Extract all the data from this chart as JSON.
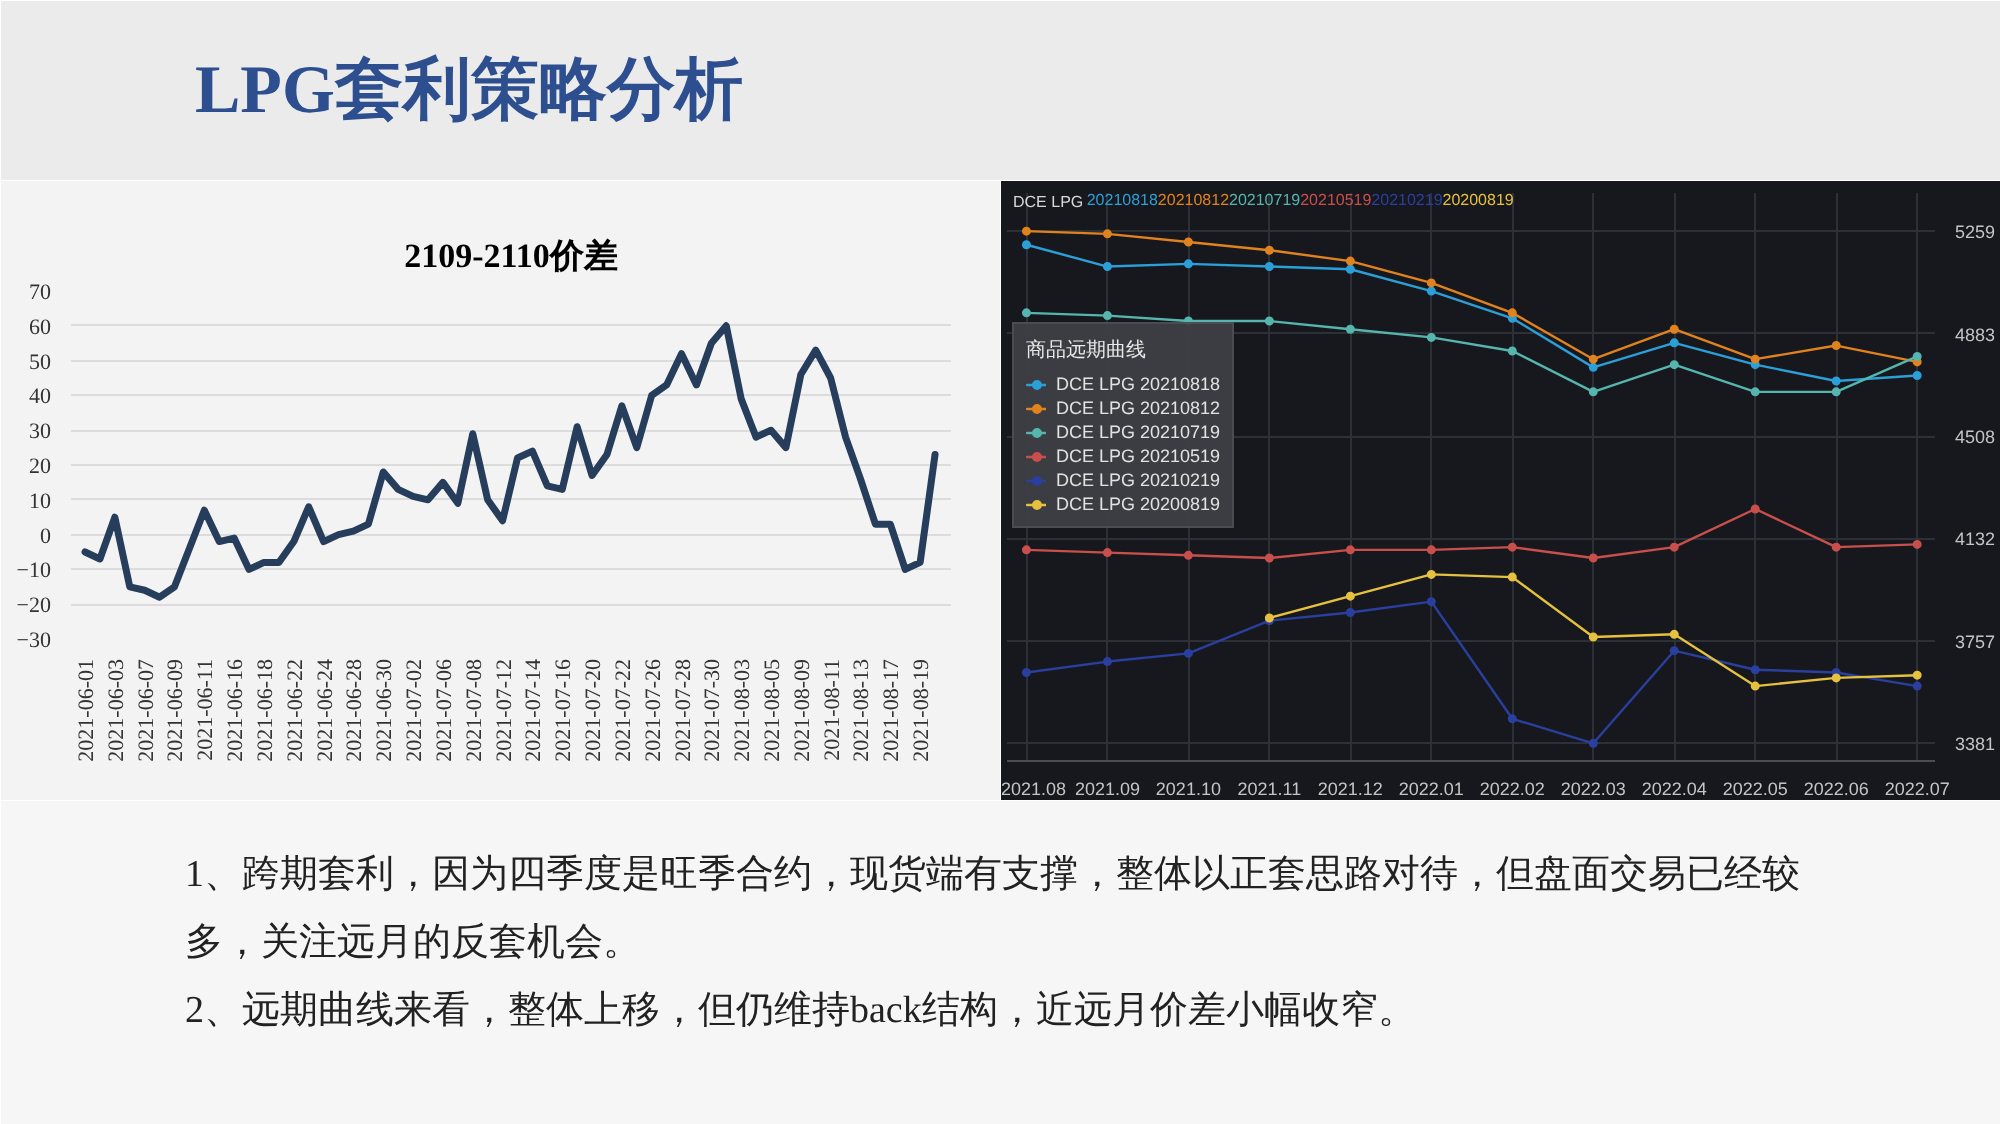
{
  "chart_data": [
    {
      "type": "other",
      "title": "LPG套利策略分析"
    },
    {
      "type": "line",
      "title": "2109-2110价差",
      "categories": [
        "2021-06-01",
        null,
        "2021-06-03",
        null,
        "2021-06-07",
        null,
        "2021-06-09",
        null,
        "2021-06-11",
        null,
        "2021-06-16",
        null,
        "2021-06-18",
        null,
        "2021-06-22",
        null,
        "2021-06-24",
        null,
        "2021-06-28",
        null,
        "2021-06-30",
        null,
        "2021-07-02",
        null,
        "2021-07-06",
        null,
        "2021-07-08",
        null,
        "2021-07-12",
        null,
        "2021-07-14",
        null,
        "2021-07-16",
        null,
        "2021-07-20",
        null,
        "2021-07-22",
        null,
        "2021-07-26",
        null,
        "2021-07-28",
        null,
        "2021-07-30",
        null,
        "2021-08-03",
        null,
        "2021-08-05",
        null,
        "2021-08-09",
        null,
        "2021-08-11",
        null,
        "2021-08-13",
        null,
        "2021-08-17",
        null,
        "2021-08-19",
        null
      ],
      "values": [
        -5,
        -7,
        5,
        -15,
        -16,
        -18,
        -15,
        -4,
        7,
        -2,
        -1,
        -10,
        -8,
        -8,
        -2,
        8,
        -2,
        0,
        1,
        3,
        18,
        13,
        11,
        10,
        15,
        9,
        29,
        10,
        4,
        22,
        24,
        14,
        13,
        31,
        17,
        23,
        37,
        25,
        40,
        43,
        52,
        43,
        55,
        60,
        39,
        28,
        30,
        25,
        46,
        53,
        45,
        28,
        16,
        3,
        3,
        -10,
        -8,
        23
      ],
      "color": "#263d5c",
      "ylim": [
        -30,
        70
      ],
      "yticks": [
        -30,
        -20,
        -10,
        0,
        10,
        20,
        30,
        40,
        50,
        60,
        70
      ],
      "grid": "y"
    },
    {
      "type": "line",
      "annotations": [
        "DCE LPG",
        "20210818",
        "20210812",
        "20210719",
        "20210519",
        "20210219",
        "20200819"
      ],
      "categories": [
        "2021.08",
        "2021.09",
        "2021.10",
        "2021.11",
        "2021.12",
        "2022.01",
        "2022.02",
        "2022.03",
        "2022.04",
        "2022.05",
        "2022.06",
        "2022.07"
      ],
      "series": [
        {
          "name": "DCE LPG 20210818",
          "color": "#2b9fd8",
          "values": [
            5210,
            5130,
            5140,
            5130,
            5120,
            5040,
            4940,
            4760,
            4850,
            4770,
            4710,
            4730
          ]
        },
        {
          "name": "DCE LPG 20210812",
          "color": "#e0831f",
          "values": [
            5260,
            5250,
            5220,
            5190,
            5150,
            5070,
            4960,
            4790,
            4900,
            4790,
            4840,
            4780
          ]
        },
        {
          "name": "DCE LPG 20210719",
          "color": "#56b5ae",
          "values": [
            4960,
            4950,
            4930,
            4930,
            4900,
            4870,
            4820,
            4670,
            4770,
            4670,
            4670,
            4800
          ]
        },
        {
          "name": "DCE LPG 20210519",
          "color": "#c94f4c",
          "values": [
            4090,
            4080,
            4070,
            4060,
            4090,
            4090,
            4100,
            4060,
            4100,
            4240,
            4100,
            4110
          ]
        },
        {
          "name": "DCE LPG 20210219",
          "color": "#2a3f9e",
          "values": [
            3640,
            3680,
            3710,
            3830,
            3860,
            3900,
            3470,
            3380,
            3720,
            3650,
            3640,
            3590
          ]
        },
        {
          "name": "DCE LPG 20200819",
          "color": "#e6c13f",
          "values": [
            null,
            null,
            null,
            3840,
            3920,
            4000,
            3990,
            3770,
            3780,
            3590,
            3620,
            3630
          ]
        }
      ],
      "ylim": [
        3315,
        5400
      ],
      "yticks": [
        3381,
        3757,
        4132,
        4508,
        4883,
        5259
      ],
      "grid": true,
      "legend": "left",
      "legend_title": "商品远期曲线",
      "marker": "circle"
    },
    {
      "type": "other",
      "annotations": [
        "1、跨期套利，因为四季度是旺季合约，现货端有支撑，整体以正套思路对待，但盘面交易已经较多，关注远月的反套机会。",
        "2、远期曲线来看，整体上移，但仍维持back结构，近远月价差小幅收窄。"
      ]
    }
  ]
}
